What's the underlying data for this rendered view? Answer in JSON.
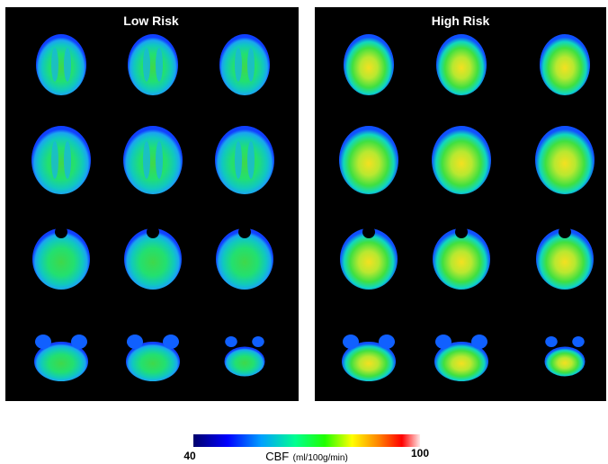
{
  "panels": [
    {
      "title": "Low Risk"
    },
    {
      "title": "High Risk"
    }
  ],
  "colorbar": {
    "min": 40,
    "max": 100,
    "label": "CBF",
    "unit": "(ml/100g/min)"
  }
}
